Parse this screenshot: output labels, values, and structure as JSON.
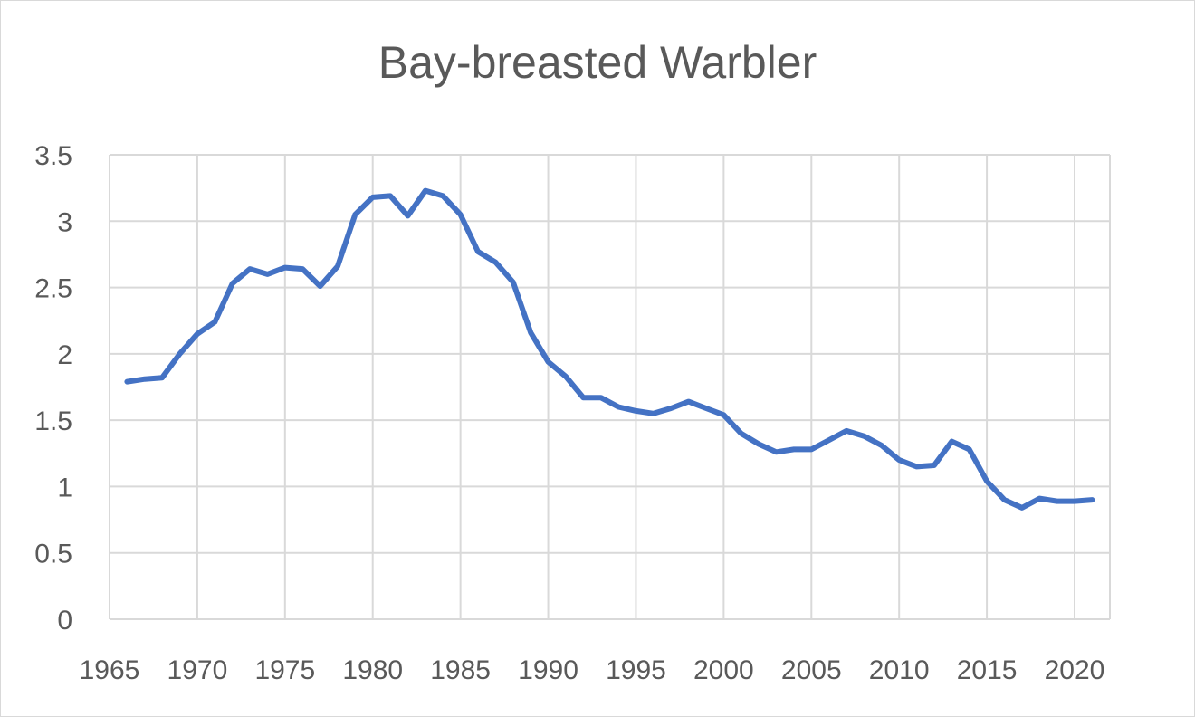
{
  "chart_data": {
    "type": "line",
    "title": "Bay-breasted Warbler",
    "xlabel": "",
    "ylabel": "",
    "xlim": [
      1965,
      2020
    ],
    "ylim": [
      0,
      3.5
    ],
    "x_ticks": [
      "1965",
      "1970",
      "1975",
      "1980",
      "1985",
      "1990",
      "1995",
      "2000",
      "2005",
      "2010",
      "2015",
      "2020"
    ],
    "y_ticks": [
      "0",
      "0.5",
      "1",
      "1.5",
      "2",
      "2.5",
      "3",
      "3.5"
    ],
    "grid": true,
    "legend": "none",
    "colors": {
      "line": "#4472c4",
      "grid": "#d9d9d9",
      "text": "#595959"
    },
    "series": [
      {
        "x": [
          1966,
          1967,
          1968,
          1969,
          1970,
          1971,
          1972,
          1973,
          1974,
          1975,
          1976,
          1977,
          1978,
          1979,
          1980,
          1981,
          1982,
          1983,
          1984,
          1985,
          1986,
          1987,
          1988,
          1989,
          1990,
          1991,
          1992,
          1993,
          1994,
          1995,
          1996,
          1997,
          1998,
          1999,
          2000,
          2001,
          2002,
          2003,
          2004,
          2005,
          2006,
          2007,
          2008,
          2009,
          2010,
          2011,
          2012,
          2013,
          2014,
          2015,
          2016,
          2017,
          2018,
          2019,
          2020,
          2021
        ],
        "values": [
          1.79,
          1.81,
          1.82,
          2.0,
          2.15,
          2.24,
          2.53,
          2.64,
          2.6,
          2.65,
          2.64,
          2.51,
          2.66,
          3.05,
          3.18,
          3.19,
          3.04,
          3.23,
          3.19,
          3.05,
          2.77,
          2.69,
          2.54,
          2.16,
          1.94,
          1.83,
          1.67,
          1.67,
          1.6,
          1.57,
          1.55,
          1.59,
          1.64,
          1.59,
          1.54,
          1.4,
          1.32,
          1.26,
          1.28,
          1.28,
          1.35,
          1.42,
          1.38,
          1.31,
          1.2,
          1.15,
          1.16,
          1.34,
          1.28,
          1.04,
          0.9,
          0.84,
          0.91,
          0.89,
          0.89,
          0.9
        ]
      }
    ]
  }
}
